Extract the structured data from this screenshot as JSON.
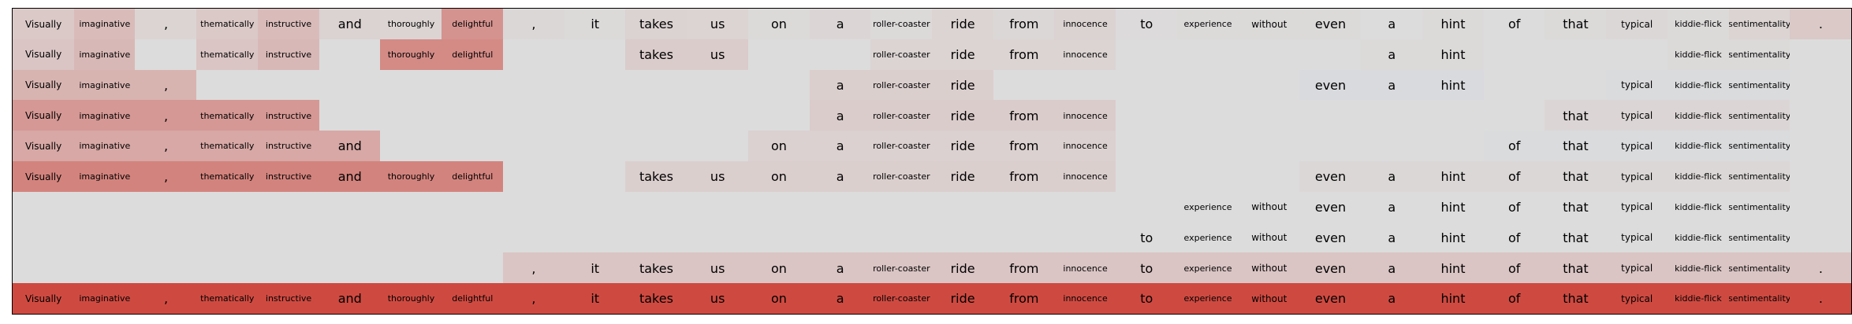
{
  "chart_data": {
    "type": "heatmap",
    "tokens": [
      "Visually",
      "imaginative",
      ",",
      "thematically",
      "instructive",
      "and",
      "thoroughly",
      "delightful",
      ",",
      "it",
      "takes",
      "us",
      "on",
      "a",
      "roller-coaster",
      "ride",
      "from",
      "innocence",
      "to",
      "experience",
      "without",
      "even",
      "a",
      "hint",
      "of",
      "that",
      "typical",
      "kiddie-flick",
      "sentimentality",
      "."
    ],
    "rows": [
      {
        "show": [
          1,
          1,
          1,
          1,
          1,
          1,
          1,
          1,
          1,
          1,
          1,
          1,
          1,
          1,
          1,
          1,
          1,
          1,
          1,
          1,
          1,
          1,
          1,
          1,
          1,
          1,
          1,
          1,
          1,
          1
        ],
        "values": [
          0.12,
          0.2,
          0.05,
          0.12,
          0.2,
          0.06,
          0.05,
          0.45,
          0.03,
          0.02,
          0.06,
          0.05,
          0.02,
          0.04,
          0.02,
          0.05,
          0.03,
          0.06,
          0.01,
          0.02,
          0.02,
          0.02,
          0.0,
          0.02,
          0.0,
          0.02,
          0.03,
          0.02,
          0.05,
          0.12
        ]
      },
      {
        "show": [
          1,
          1,
          0,
          1,
          1,
          0,
          1,
          1,
          0,
          0,
          1,
          1,
          0,
          0,
          1,
          1,
          1,
          1,
          0,
          0,
          0,
          0,
          1,
          1,
          0,
          0,
          0,
          1,
          1,
          0
        ],
        "values": [
          0.14,
          0.22,
          0,
          0.14,
          0.22,
          0,
          0.5,
          0.5,
          0,
          0,
          0.1,
          0.1,
          0,
          0,
          0.05,
          0.05,
          0.05,
          0.05,
          0,
          0,
          0,
          0,
          0.02,
          0.02,
          0,
          0,
          0,
          0.02,
          0.02,
          0
        ]
      },
      {
        "show": [
          1,
          1,
          1,
          0,
          0,
          0,
          0,
          0,
          0,
          0,
          0,
          0,
          0,
          1,
          1,
          1,
          0,
          0,
          0,
          0,
          0,
          1,
          1,
          1,
          0,
          0,
          1,
          1,
          1,
          0
        ],
        "values": [
          0.25,
          0.25,
          0.25,
          0,
          0,
          0,
          0,
          0,
          0,
          0,
          0,
          0,
          0,
          0.08,
          0.08,
          0.08,
          0,
          0,
          0,
          0,
          0,
          -0.08,
          -0.08,
          -0.08,
          0,
          0,
          -0.05,
          -0.05,
          -0.05,
          0
        ]
      },
      {
        "show": [
          1,
          1,
          1,
          1,
          1,
          0,
          0,
          0,
          0,
          0,
          0,
          0,
          0,
          1,
          1,
          1,
          1,
          1,
          0,
          0,
          0,
          0,
          0,
          0,
          0,
          1,
          1,
          1,
          1,
          0
        ],
        "values": [
          0.42,
          0.42,
          0.42,
          0.42,
          0.42,
          0,
          0,
          0,
          0,
          0,
          0,
          0,
          0,
          0.1,
          0.1,
          0.1,
          0.1,
          0.1,
          0,
          0,
          0,
          0,
          0,
          0,
          0,
          0.04,
          0.04,
          0.04,
          0.04,
          0
        ]
      },
      {
        "show": [
          1,
          1,
          1,
          1,
          1,
          1,
          0,
          0,
          0,
          0,
          0,
          0,
          1,
          1,
          1,
          1,
          1,
          1,
          0,
          0,
          0,
          0,
          0,
          0,
          1,
          1,
          1,
          1,
          1,
          0
        ],
        "values": [
          0.32,
          0.32,
          0.32,
          0.32,
          0.32,
          0.32,
          0,
          0,
          0,
          0,
          0,
          0,
          0.07,
          0.07,
          0.07,
          0.07,
          0.07,
          0.07,
          0,
          0,
          0,
          0,
          0,
          0,
          -0.06,
          -0.06,
          -0.06,
          -0.06,
          -0.06,
          0
        ]
      },
      {
        "show": [
          1,
          1,
          1,
          1,
          1,
          1,
          1,
          1,
          0,
          0,
          1,
          1,
          1,
          1,
          1,
          1,
          1,
          1,
          0,
          0,
          0,
          1,
          1,
          1,
          1,
          1,
          1,
          1,
          1,
          0
        ],
        "values": [
          0.55,
          0.55,
          0.55,
          0.55,
          0.55,
          0.55,
          0.55,
          0.55,
          0,
          0,
          0.08,
          0.08,
          0.08,
          0.08,
          0.08,
          0.08,
          0.08,
          0.08,
          0,
          0,
          0,
          0.03,
          0.03,
          0.03,
          0.03,
          0.03,
          0.03,
          0.03,
          0.03,
          0
        ]
      },
      {
        "show": [
          0,
          0,
          0,
          0,
          0,
          0,
          0,
          0,
          0,
          0,
          0,
          0,
          0,
          0,
          0,
          0,
          0,
          0,
          0,
          1,
          1,
          1,
          1,
          1,
          1,
          1,
          1,
          1,
          1,
          0
        ],
        "values": [
          0,
          0,
          0,
          0,
          0,
          0,
          0,
          0,
          0,
          0,
          0,
          0,
          0,
          0,
          0,
          0,
          0,
          0,
          0,
          -0.01,
          -0.01,
          -0.01,
          -0.01,
          -0.01,
          -0.01,
          -0.01,
          -0.01,
          -0.01,
          -0.01,
          0
        ]
      },
      {
        "show": [
          0,
          0,
          0,
          0,
          0,
          0,
          0,
          0,
          0,
          0,
          0,
          0,
          0,
          0,
          0,
          0,
          0,
          0,
          1,
          1,
          1,
          1,
          1,
          1,
          1,
          1,
          1,
          1,
          1,
          0
        ],
        "values": [
          0,
          0,
          0,
          0,
          0,
          0,
          0,
          0,
          0,
          0,
          0,
          0,
          0,
          0,
          0,
          0,
          0,
          0,
          -0.01,
          -0.01,
          -0.01,
          -0.01,
          -0.01,
          -0.01,
          -0.01,
          -0.01,
          -0.01,
          -0.01,
          -0.01,
          0
        ]
      },
      {
        "show": [
          0,
          0,
          0,
          0,
          0,
          0,
          0,
          0,
          1,
          1,
          1,
          1,
          1,
          1,
          1,
          1,
          1,
          1,
          1,
          1,
          1,
          1,
          1,
          1,
          1,
          1,
          1,
          1,
          1,
          1
        ],
        "values": [
          0,
          0,
          0,
          0,
          0,
          0,
          0,
          0,
          0.14,
          0.14,
          0.14,
          0.14,
          0.14,
          0.14,
          0.14,
          0.14,
          0.14,
          0.14,
          0.14,
          0.14,
          0.14,
          0.14,
          0.14,
          0.14,
          0.14,
          0.14,
          0.14,
          0.14,
          0.14,
          0.14
        ]
      },
      {
        "show": [
          1,
          1,
          1,
          1,
          1,
          1,
          1,
          1,
          1,
          1,
          1,
          1,
          1,
          1,
          1,
          1,
          1,
          1,
          1,
          1,
          1,
          1,
          1,
          1,
          1,
          1,
          1,
          1,
          1,
          1
        ],
        "values": [
          0.9,
          0.9,
          0.9,
          0.9,
          0.9,
          0.9,
          0.9,
          0.9,
          0.9,
          0.9,
          0.9,
          0.9,
          0.9,
          0.9,
          0.9,
          0.9,
          0.9,
          0.9,
          0.9,
          0.9,
          0.9,
          0.9,
          0.9,
          0.9,
          0.9,
          0.9,
          0.9,
          0.9,
          0.9,
          0.9
        ]
      }
    ],
    "color_scale": {
      "negative": "#b4c4e6",
      "neutral": "#dcdcdc",
      "positive": "#cc3a30"
    },
    "title": "",
    "xlabel": "",
    "ylabel": ""
  }
}
